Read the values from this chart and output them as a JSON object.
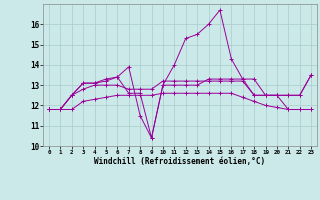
{
  "background_color": "#cce9e9",
  "grid_color": "#aacccc",
  "line_color": "#990099",
  "xlabel": "Windchill (Refroidissement éolien,°C)",
  "x_ticks": [
    0,
    1,
    2,
    3,
    4,
    5,
    6,
    7,
    8,
    9,
    10,
    11,
    12,
    13,
    14,
    15,
    16,
    17,
    18,
    19,
    20,
    21,
    22,
    23
  ],
  "ylim": [
    10,
    17
  ],
  "y_ticks": [
    10,
    11,
    12,
    13,
    14,
    15,
    16
  ],
  "series": [
    [
      11.8,
      11.8,
      12.5,
      13.1,
      13.1,
      13.3,
      13.4,
      13.9,
      11.5,
      10.4,
      13.0,
      13.0,
      13.0,
      13.0,
      13.3,
      13.3,
      13.3,
      13.3,
      12.5,
      12.5,
      12.5,
      12.5,
      12.5,
      13.5
    ],
    [
      11.8,
      11.8,
      11.8,
      12.2,
      12.3,
      12.4,
      12.5,
      12.5,
      12.5,
      12.5,
      12.6,
      12.6,
      12.6,
      12.6,
      12.6,
      12.6,
      12.6,
      12.4,
      12.2,
      12.0,
      11.9,
      11.8,
      11.8,
      11.8
    ],
    [
      11.8,
      11.8,
      12.5,
      12.8,
      13.0,
      13.0,
      13.0,
      12.8,
      12.8,
      12.8,
      13.2,
      13.2,
      13.2,
      13.2,
      13.2,
      13.2,
      13.2,
      13.2,
      12.5,
      12.5,
      12.5,
      12.5,
      12.5,
      13.5
    ],
    [
      11.8,
      11.8,
      12.5,
      13.1,
      13.1,
      13.2,
      13.4,
      12.6,
      12.6,
      10.4,
      13.0,
      14.0,
      15.3,
      15.5,
      16.0,
      16.7,
      14.3,
      13.3,
      13.3,
      12.5,
      12.5,
      11.8,
      11.8,
      11.8
    ]
  ]
}
